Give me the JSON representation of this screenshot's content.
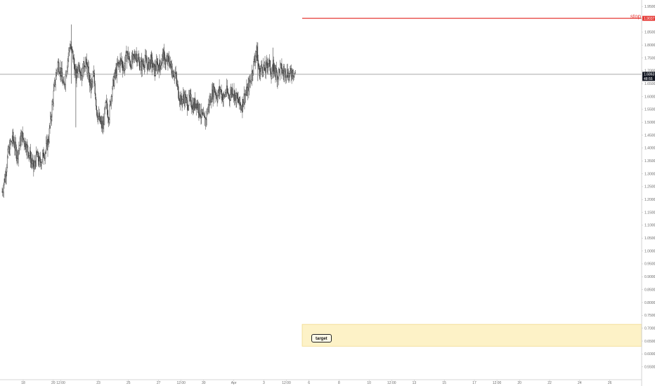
{
  "chart_data": {
    "type": "candlestick",
    "y_axis": {
      "min": 0.5,
      "max": 1.975,
      "ticks": [
        "1.9500",
        "1.9000",
        "1.8500",
        "1.8000",
        "1.7500",
        "1.7000",
        "1.6500",
        "1.6000",
        "1.5500",
        "1.5000",
        "1.4500",
        "1.4000",
        "1.3500",
        "1.3000",
        "1.2500",
        "1.2000",
        "1.1500",
        "1.1000",
        "1.0500",
        "1.0000",
        "0.9500",
        "0.9000",
        "0.8500",
        "0.8000",
        "0.7500",
        "0.7000",
        "0.6500",
        "0.6000",
        "0.5500"
      ]
    },
    "x_axis": {
      "ticks": [
        {
          "label": "18",
          "day": 18
        },
        {
          "label": "20",
          "day": 20
        },
        {
          "label": "12:00",
          "day": 20.5
        },
        {
          "label": "23",
          "day": 23
        },
        {
          "label": "25",
          "day": 25
        },
        {
          "label": "27",
          "day": 27
        },
        {
          "label": "12:00",
          "day": 28.5
        },
        {
          "label": "30",
          "day": 30
        },
        {
          "label": "Apr",
          "day": 32
        },
        {
          "label": "3",
          "day": 34
        },
        {
          "label": "12:00",
          "day": 35.5
        },
        {
          "label": "6",
          "day": 37
        },
        {
          "label": "8",
          "day": 39
        },
        {
          "label": "10",
          "day": 41
        },
        {
          "label": "12:00",
          "day": 42.5
        },
        {
          "label": "13",
          "day": 44
        },
        {
          "label": "15",
          "day": 46
        },
        {
          "label": "17",
          "day": 48
        },
        {
          "label": "12:00",
          "day": 49.5
        },
        {
          "label": "20",
          "day": 51
        },
        {
          "label": "22",
          "day": 53
        },
        {
          "label": "24",
          "day": 55
        },
        {
          "label": "26",
          "day": 57
        }
      ]
    },
    "price_path": [
      [
        16.6,
        1.23
      ],
      [
        16.8,
        1.29
      ],
      [
        17.0,
        1.38
      ],
      [
        17.3,
        1.44
      ],
      [
        17.6,
        1.37
      ],
      [
        17.9,
        1.45
      ],
      [
        18.2,
        1.41
      ],
      [
        18.5,
        1.36
      ],
      [
        18.7,
        1.32
      ],
      [
        18.9,
        1.37
      ],
      [
        19.1,
        1.34
      ],
      [
        19.3,
        1.37
      ],
      [
        19.5,
        1.39
      ],
      [
        19.7,
        1.44
      ],
      [
        19.9,
        1.55
      ],
      [
        20.1,
        1.65
      ],
      [
        20.3,
        1.73
      ],
      [
        20.5,
        1.7
      ],
      [
        20.7,
        1.63
      ],
      [
        20.9,
        1.72
      ],
      [
        21.1,
        1.8
      ],
      [
        21.3,
        1.76
      ],
      [
        21.5,
        1.67
      ],
      [
        21.7,
        1.73
      ],
      [
        21.9,
        1.68
      ],
      [
        22.1,
        1.74
      ],
      [
        22.3,
        1.7
      ],
      [
        22.5,
        1.63
      ],
      [
        22.7,
        1.68
      ],
      [
        22.9,
        1.54
      ],
      [
        23.1,
        1.5
      ],
      [
        23.3,
        1.48
      ],
      [
        23.5,
        1.57
      ],
      [
        23.7,
        1.52
      ],
      [
        23.9,
        1.63
      ],
      [
        24.1,
        1.68
      ],
      [
        24.3,
        1.72
      ],
      [
        24.5,
        1.74
      ],
      [
        24.7,
        1.71
      ],
      [
        24.9,
        1.77
      ],
      [
        25.1,
        1.73
      ],
      [
        25.3,
        1.74
      ],
      [
        25.5,
        1.77
      ],
      [
        25.7,
        1.73
      ],
      [
        25.9,
        1.72
      ],
      [
        26.1,
        1.74
      ],
      [
        26.3,
        1.72
      ],
      [
        26.5,
        1.74
      ],
      [
        26.7,
        1.7
      ],
      [
        26.9,
        1.72
      ],
      [
        27.1,
        1.72
      ],
      [
        27.3,
        1.76
      ],
      [
        27.5,
        1.73
      ],
      [
        27.7,
        1.74
      ],
      [
        27.9,
        1.7
      ],
      [
        28.1,
        1.69
      ],
      [
        28.3,
        1.62
      ],
      [
        28.5,
        1.58
      ],
      [
        28.7,
        1.6
      ],
      [
        28.9,
        1.57
      ],
      [
        29.1,
        1.59
      ],
      [
        29.3,
        1.56
      ],
      [
        29.5,
        1.58
      ],
      [
        29.7,
        1.55
      ],
      [
        29.9,
        1.52
      ],
      [
        30.1,
        1.5
      ],
      [
        30.3,
        1.56
      ],
      [
        30.5,
        1.6
      ],
      [
        30.7,
        1.63
      ],
      [
        30.9,
        1.6
      ],
      [
        31.1,
        1.63
      ],
      [
        31.3,
        1.59
      ],
      [
        31.5,
        1.62
      ],
      [
        31.7,
        1.6
      ],
      [
        31.9,
        1.63
      ],
      [
        32.1,
        1.6
      ],
      [
        32.3,
        1.58
      ],
      [
        32.5,
        1.56
      ],
      [
        32.7,
        1.6
      ],
      [
        32.9,
        1.62
      ],
      [
        33.1,
        1.66
      ],
      [
        33.3,
        1.72
      ],
      [
        33.5,
        1.78
      ],
      [
        33.7,
        1.69
      ],
      [
        33.9,
        1.72
      ],
      [
        34.1,
        1.7
      ],
      [
        34.3,
        1.74
      ],
      [
        34.5,
        1.69
      ],
      [
        34.7,
        1.71
      ],
      [
        34.9,
        1.68
      ],
      [
        35.1,
        1.71
      ],
      [
        35.3,
        1.69
      ],
      [
        35.5,
        1.7
      ],
      [
        35.7,
        1.68
      ],
      [
        35.9,
        1.7
      ],
      [
        36.1,
        1.69
      ]
    ],
    "last_price": "1.6863",
    "countdown": "48:55",
    "stop": {
      "label": "stop",
      "price": 1.9037,
      "price_tag": "1.9037",
      "color": "#e53935"
    },
    "target": {
      "label": "target",
      "from": 0.63,
      "to": 0.715
    },
    "colors": {
      "candle": "#3a3a3a",
      "crosshair": "#8c8c8c",
      "zone_fill": "#fdf2c7",
      "zone_edge": "#f1d98c",
      "axis": "#c8c8c8"
    }
  }
}
